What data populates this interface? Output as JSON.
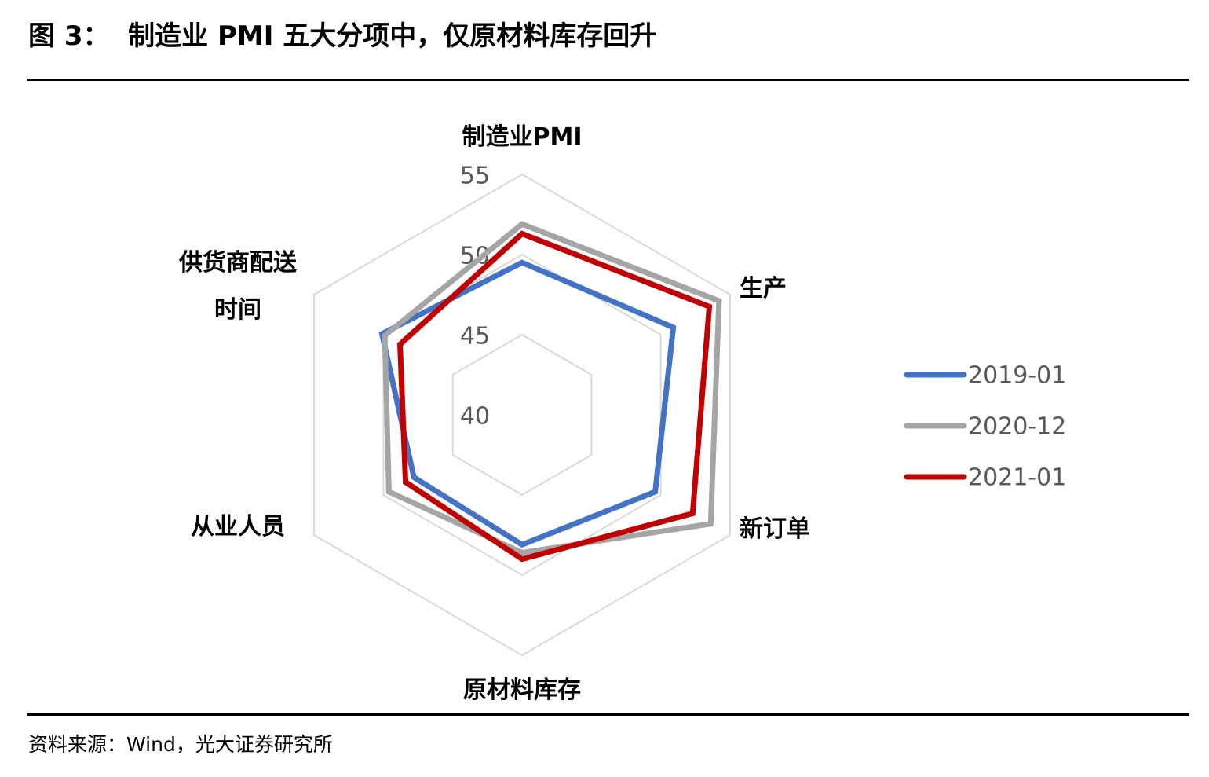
{
  "header": {
    "title": "图 3：  制造业 PMI 五大分项中，仅原材料库存回升"
  },
  "chart_data": {
    "type": "radar",
    "categories": [
      "制造业PMI",
      "生产",
      "新订单",
      "原材料库存",
      "从业人员",
      "供货商配送时间"
    ],
    "series": [
      {
        "name": "2019-01",
        "color": "#4472c4",
        "values": [
          49.5,
          50.9,
          49.6,
          48.1,
          47.8,
          50.1
        ]
      },
      {
        "name": "2020-12",
        "color": "#a5a5a5",
        "values": [
          51.9,
          54.2,
          53.6,
          48.6,
          49.6,
          49.9
        ]
      },
      {
        "name": "2021-01",
        "color": "#c00000",
        "values": [
          51.3,
          53.5,
          52.3,
          49.0,
          48.4,
          48.8
        ]
      }
    ],
    "ylim": [
      40,
      55
    ],
    "yticks": [
      40,
      45,
      50,
      55
    ],
    "grid": true,
    "legend": "right"
  },
  "footer": {
    "source": "资料来源：Wind，光大证券研究所"
  }
}
